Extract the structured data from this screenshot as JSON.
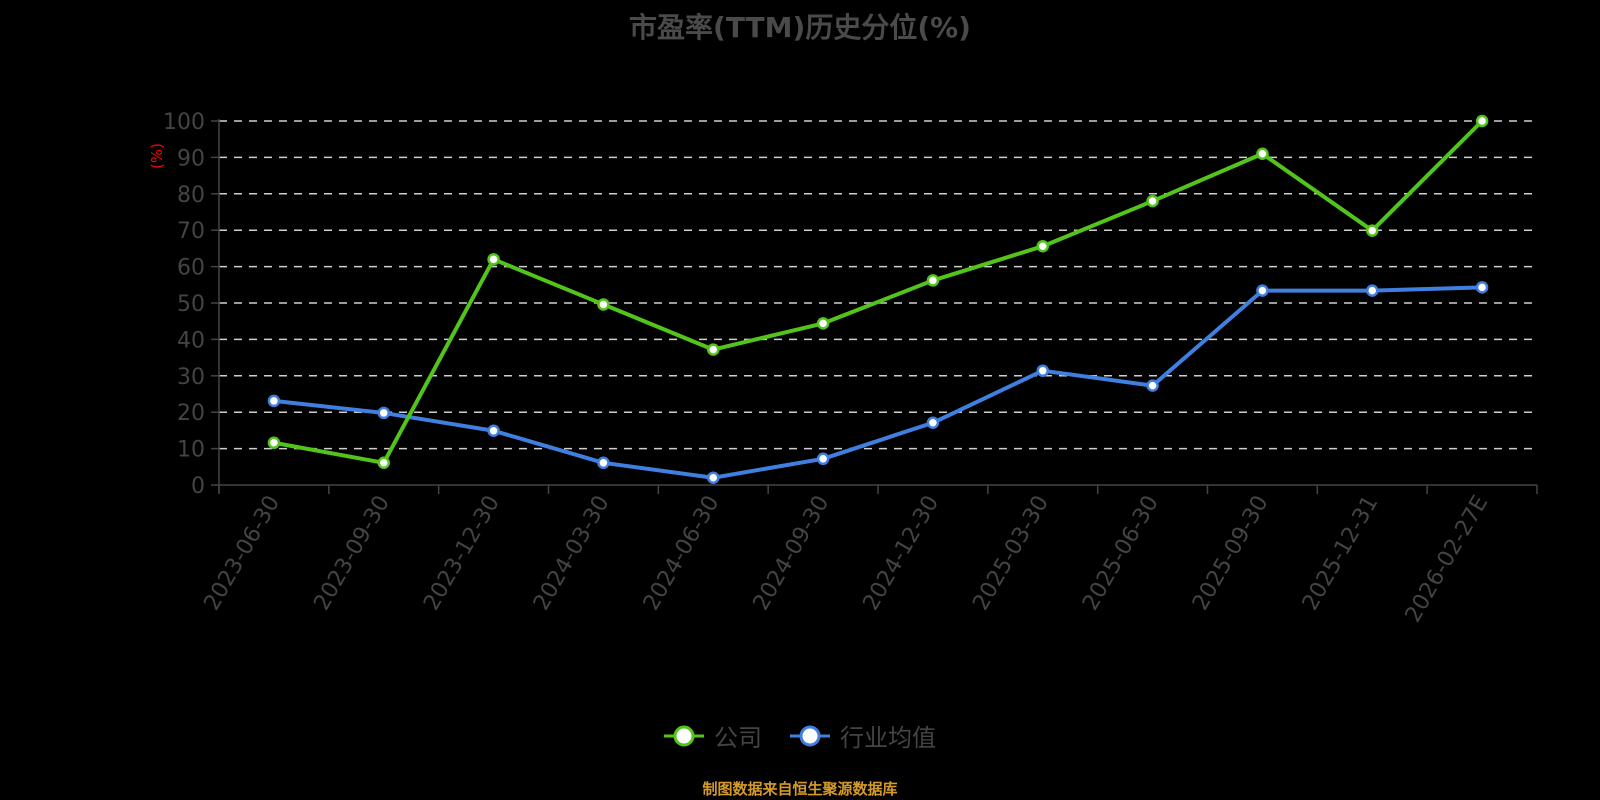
{
  "title": "市盈率(TTM)历史分位(%)",
  "footer": "制图数据来自恒生聚源数据库",
  "colors": {
    "company": "#52c41a",
    "industry": "#3f7fe0",
    "grid": "#cfcfcf",
    "axis": "#444444",
    "unit": "#ff0000",
    "footer": "#d49a2a"
  },
  "legend": [
    {
      "label": "公司",
      "color": "#52c41a"
    },
    {
      "label": "行业均值",
      "color": "#3f7fe0"
    }
  ],
  "chart_data": {
    "type": "line",
    "title": "市盈率(TTM)历史分位(%)",
    "xlabel": "",
    "ylabel": "(%)",
    "ylim": [
      0,
      100
    ],
    "yticks": [
      0,
      10,
      20,
      30,
      40,
      50,
      60,
      70,
      80,
      90,
      100
    ],
    "grid": true,
    "legend_position": "bottom",
    "categories": [
      "2023-06-30",
      "2023-09-30",
      "2023-12-30",
      "2024-03-30",
      "2024-06-30",
      "2024-09-30",
      "2024-12-30",
      "2025-03-30",
      "2025-06-30",
      "2025-09-30",
      "2025-12-31",
      "2026-02-27E"
    ],
    "series": [
      {
        "name": "公司",
        "color": "#52c41a",
        "values": [
          11.6,
          6.1,
          62.0,
          49.6,
          37.2,
          44.4,
          56.2,
          65.6,
          78.0,
          91.0,
          69.9,
          100.0
        ]
      },
      {
        "name": "行业均值",
        "color": "#3f7fe0",
        "values": [
          23.1,
          19.8,
          14.9,
          6.1,
          2.0,
          7.2,
          17.1,
          31.4,
          27.3,
          53.4,
          53.4,
          54.3
        ]
      }
    ]
  }
}
